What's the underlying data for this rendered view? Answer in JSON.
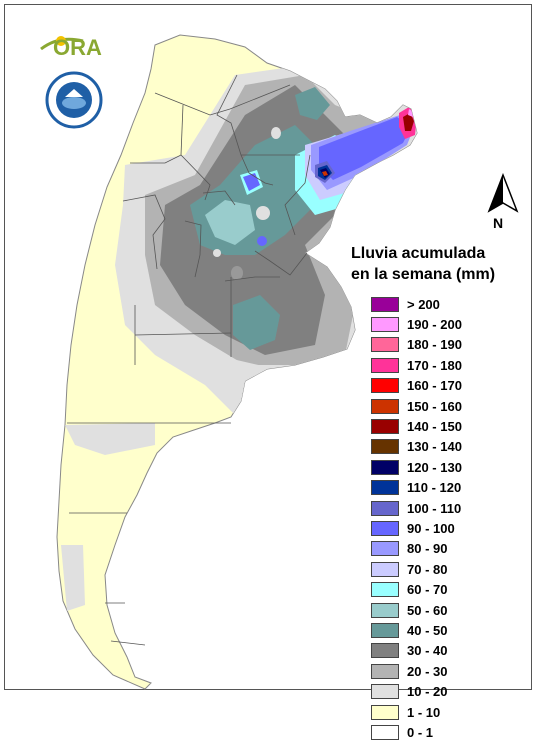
{
  "legend": {
    "title_line1": "Lluvia acumulada",
    "title_line2": "en la semana (mm)",
    "classes": [
      {
        "label": "> 200",
        "color": "#990099"
      },
      {
        "label": "190 - 200",
        "color": "#ff99ff"
      },
      {
        "label": "180 - 190",
        "color": "#ff6699"
      },
      {
        "label": "170 - 180",
        "color": "#ff3399"
      },
      {
        "label": "160 - 170",
        "color": "#ff0000"
      },
      {
        "label": "150 - 160",
        "color": "#cc3300"
      },
      {
        "label": "140 - 150",
        "color": "#990000"
      },
      {
        "label": "130 - 140",
        "color": "#663300"
      },
      {
        "label": "120 - 130",
        "color": "#000066"
      },
      {
        "label": "110 - 120",
        "color": "#003399"
      },
      {
        "label": "100 - 110",
        "color": "#6666cc"
      },
      {
        "label": "90 - 100",
        "color": "#6666ff"
      },
      {
        "label": "80 - 90",
        "color": "#9999ff"
      },
      {
        "label": "70 - 80",
        "color": "#ccccff"
      },
      {
        "label": "60 - 70",
        "color": "#99ffff"
      },
      {
        "label": "50 - 60",
        "color": "#99cccc"
      },
      {
        "label": "40 - 50",
        "color": "#669999"
      },
      {
        "label": "30 - 40",
        "color": "#808080"
      },
      {
        "label": "20 - 30",
        "color": "#b3b3b3"
      },
      {
        "label": "10 - 20",
        "color": "#e0e0e0"
      },
      {
        "label": "1 - 10",
        "color": "#ffffcc"
      },
      {
        "label": "0 - 1",
        "color": "#ffffff"
      }
    ]
  },
  "north_arrow": {
    "label": "N"
  },
  "logo": {
    "text": "ORA",
    "sun_color": "#f2c200",
    "text_color": "#8aa832"
  },
  "colors": {
    "land_base": "#ffffcc",
    "border": "#555555"
  }
}
